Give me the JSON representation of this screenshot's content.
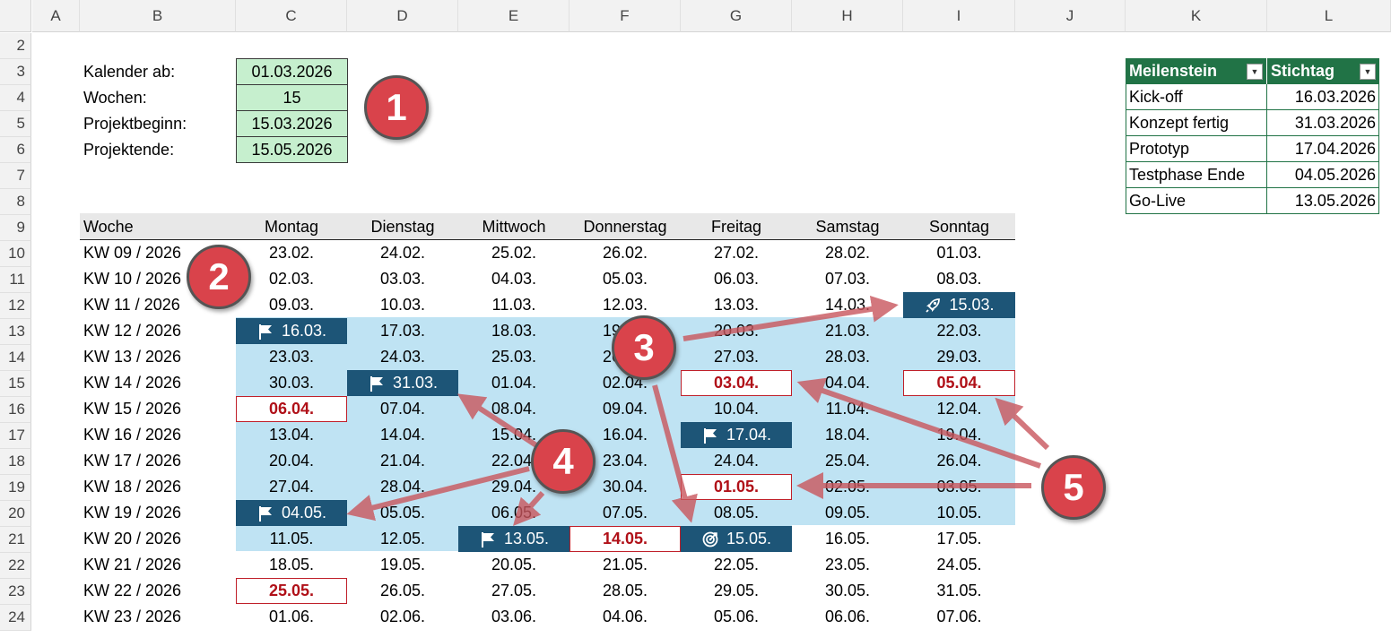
{
  "columns": [
    "A",
    "B",
    "C",
    "D",
    "E",
    "F",
    "G",
    "H",
    "I",
    "J",
    "K",
    "L"
  ],
  "rows": [
    "2",
    "3",
    "4",
    "5",
    "6",
    "7",
    "8",
    "9",
    "10",
    "11",
    "12",
    "13",
    "14",
    "15",
    "16",
    "17",
    "18",
    "19",
    "20",
    "21",
    "22",
    "23",
    "24"
  ],
  "inputs": [
    {
      "label": "Kalender ab:",
      "value": "01.03.2026"
    },
    {
      "label": "Wochen:",
      "value": "15"
    },
    {
      "label": "Projektbeginn:",
      "value": "15.03.2026"
    },
    {
      "label": "Projektende:",
      "value": "15.05.2026"
    }
  ],
  "calendar": {
    "headers": [
      "Woche",
      "Montag",
      "Dienstag",
      "Mittwoch",
      "Donnerstag",
      "Freitag",
      "Samstag",
      "Sonntag"
    ],
    "weeks": [
      {
        "label": "KW 09 / 2026",
        "days": [
          "23.02.",
          "24.02.",
          "25.02.",
          "26.02.",
          "27.02.",
          "28.02.",
          "01.03."
        ]
      },
      {
        "label": "KW 10 / 2026",
        "days": [
          "02.03.",
          "03.03.",
          "04.03.",
          "05.03.",
          "06.03.",
          "07.03.",
          "08.03."
        ]
      },
      {
        "label": "KW 11 / 2026",
        "days": [
          "09.03.",
          "10.03.",
          "11.03.",
          "12.03.",
          "13.03.",
          "14.03.",
          "15.03."
        ]
      },
      {
        "label": "KW 12 / 2026",
        "days": [
          "16.03.",
          "17.03.",
          "18.03.",
          "19.03.",
          "20.03.",
          "21.03.",
          "22.03."
        ]
      },
      {
        "label": "KW 13 / 2026",
        "days": [
          "23.03.",
          "24.03.",
          "25.03.",
          "26.03.",
          "27.03.",
          "28.03.",
          "29.03."
        ]
      },
      {
        "label": "KW 14 / 2026",
        "days": [
          "30.03.",
          "31.03.",
          "01.04.",
          "02.04.",
          "03.04.",
          "04.04.",
          "05.04."
        ]
      },
      {
        "label": "KW 15 / 2026",
        "days": [
          "06.04.",
          "07.04.",
          "08.04.",
          "09.04.",
          "10.04.",
          "11.04.",
          "12.04."
        ]
      },
      {
        "label": "KW 16 / 2026",
        "days": [
          "13.04.",
          "14.04.",
          "15.04.",
          "16.04.",
          "17.04.",
          "18.04.",
          "19.04."
        ]
      },
      {
        "label": "KW 17 / 2026",
        "days": [
          "20.04.",
          "21.04.",
          "22.04.",
          "23.04.",
          "24.04.",
          "25.04.",
          "26.04."
        ]
      },
      {
        "label": "KW 18 / 2026",
        "days": [
          "27.04.",
          "28.04.",
          "29.04.",
          "30.04.",
          "01.05.",
          "02.05.",
          "03.05."
        ]
      },
      {
        "label": "KW 19 / 2026",
        "days": [
          "04.05.",
          "05.05.",
          "06.05.",
          "07.05.",
          "08.05.",
          "09.05.",
          "10.05."
        ]
      },
      {
        "label": "KW 20 / 2026",
        "days": [
          "11.05.",
          "12.05.",
          "13.05.",
          "14.05.",
          "15.05.",
          "16.05.",
          "17.05."
        ]
      },
      {
        "label": "KW 21 / 2026",
        "days": [
          "18.05.",
          "19.05.",
          "20.05.",
          "21.05.",
          "22.05.",
          "23.05.",
          "24.05."
        ]
      },
      {
        "label": "KW 22 / 2026",
        "days": [
          "25.05.",
          "26.05.",
          "27.05.",
          "28.05.",
          "29.05.",
          "30.05.",
          "31.05."
        ]
      },
      {
        "label": "KW 23 / 2026",
        "days": [
          "01.06.",
          "02.06.",
          "03.06.",
          "04.06.",
          "05.06.",
          "06.06.",
          "07.06."
        ]
      }
    ],
    "project_start": "15.03.2026",
    "project_end": "15.05.2026",
    "start_icon": "rocket-icon",
    "end_icon": "target-icon",
    "milestone_icon": "flag-icon",
    "milestone_days": [
      "16.03.",
      "31.03.",
      "17.04.",
      "04.05.",
      "13.05."
    ],
    "holiday_days": [
      "03.04.",
      "05.04.",
      "06.04.",
      "01.05.",
      "14.05.",
      "25.05."
    ]
  },
  "milestones_table": {
    "headers": [
      "Meilenstein",
      "Stichtag"
    ],
    "rows": [
      {
        "name": "Kick-off",
        "date": "16.03.2026"
      },
      {
        "name": "Konzept fertig",
        "date": "31.03.2026"
      },
      {
        "name": "Prototyp",
        "date": "17.04.2026"
      },
      {
        "name": "Testphase Ende",
        "date": "04.05.2026"
      },
      {
        "name": "Go-Live",
        "date": "13.05.2026"
      }
    ]
  },
  "callouts": [
    "1",
    "2",
    "3",
    "4",
    "5"
  ],
  "colors": {
    "band": "#bfe3f3",
    "milestone": "#1d5577",
    "holiday": "#b01018",
    "input_fill": "#c6efce",
    "table_header": "#217346",
    "callout": "#d9434b"
  }
}
